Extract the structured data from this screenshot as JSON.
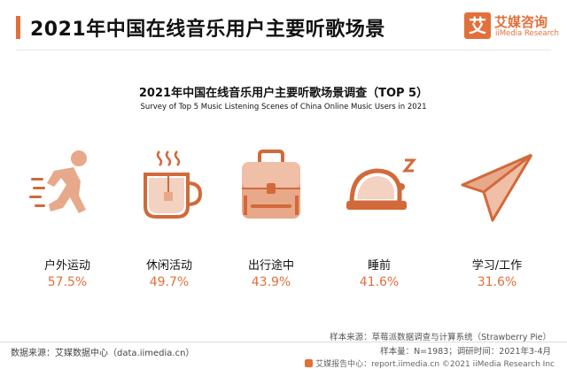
{
  "header": {
    "title": "2021年中国在线音乐用户主要听歌场景",
    "logo_mark": "艾",
    "logo_cn": "艾媒咨询",
    "logo_en": "iiMedia Research"
  },
  "chart_data": {
    "type": "table",
    "title": "2021年中国在线音乐用户主要听歌场景调查（TOP 5）",
    "subtitle": "Survey of Top 5 Music Listening Scenes of China Online Music Users in 2021",
    "categories": [
      "户外运动",
      "休闲活动",
      "出行途中",
      "睡前",
      "学习/工作"
    ],
    "values": [
      57.5,
      49.7,
      43.9,
      41.6,
      31.6
    ],
    "value_labels": [
      "57.5%",
      "49.7%",
      "43.9%",
      "41.6%",
      "31.6%"
    ],
    "icons": [
      "runner-icon",
      "tea-cup-icon",
      "bag-icon",
      "sleeping-cap-icon",
      "paper-plane-icon"
    ]
  },
  "colors": {
    "accent": "#e2703a",
    "icon_fill": "#e8a88a",
    "icon_dark": "#d2693a"
  },
  "footer": {
    "source_left": "数据来源：艾媒数据中心（data.iimedia.cn）",
    "sample_source": "样本来源：草莓派数据调查与计算系统（Strawberry Pie）",
    "sample_size": "样本量：N=1983；调研时间：2021年3-4月",
    "credit": "艾媒报告中心：report.iimedia.cn ©2021  iiMedia Research  Inc"
  }
}
